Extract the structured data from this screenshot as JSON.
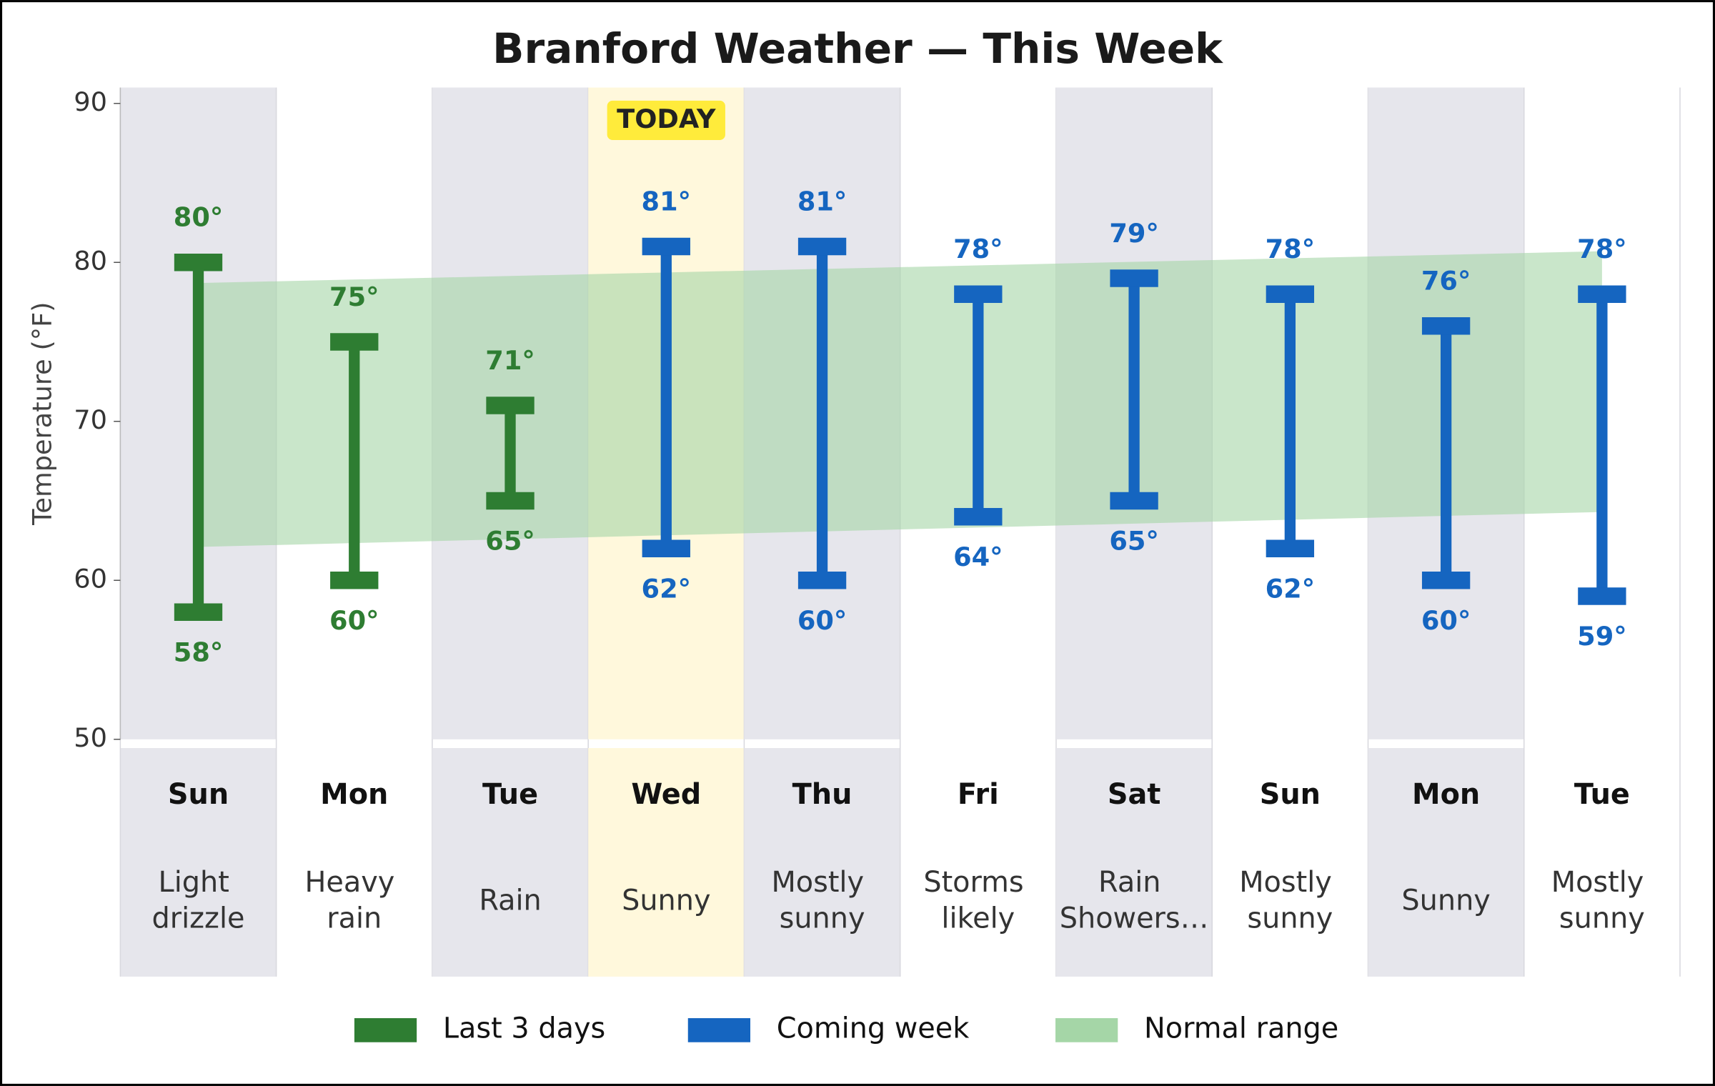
{
  "chart_data": {
    "type": "range",
    "title": "Branford Weather — This Week",
    "ylabel": "Temperature (°F)",
    "ylim": [
      50,
      91
    ],
    "yticks": [
      50,
      60,
      70,
      80,
      90
    ],
    "categories": [
      "Sun",
      "Mon",
      "Tue",
      "Wed",
      "Thu",
      "Fri",
      "Sat",
      "Sun",
      "Mon",
      "Tue"
    ],
    "conditions": [
      "Light drizzle",
      "Heavy rain",
      "Rain",
      "Sunny",
      "Mostly sunny",
      "Storms likely",
      "Rain Showers…",
      "Mostly sunny",
      "Sunny",
      "Mostly sunny"
    ],
    "today": {
      "label": "TODAY",
      "index": 3,
      "color": "#fff8dc",
      "badge_color": "#ffeb3b"
    },
    "shade_color": "#e6e6ec",
    "series": [
      {
        "name": "Last 3 days",
        "color": "#2e7d32",
        "high": [
          80,
          75,
          71,
          null,
          null,
          null,
          null,
          null,
          null,
          null
        ],
        "low": [
          58,
          60,
          65,
          null,
          null,
          null,
          null,
          null,
          null,
          null
        ],
        "high_labels": [
          "80°",
          "75°",
          "71°",
          null,
          null,
          null,
          null,
          null,
          null,
          null
        ],
        "low_labels": [
          "58°",
          "60°",
          "65°",
          null,
          null,
          null,
          null,
          null,
          null,
          null
        ]
      },
      {
        "name": "Coming week",
        "color": "#1565c0",
        "high": [
          null,
          null,
          null,
          81,
          81,
          78,
          79,
          78,
          76,
          78
        ],
        "low": [
          null,
          null,
          null,
          62,
          60,
          64,
          65,
          62,
          60,
          59
        ],
        "high_labels": [
          null,
          null,
          null,
          "81°",
          "81°",
          "78°",
          "79°",
          "78°",
          "76°",
          "78°"
        ],
        "low_labels": [
          null,
          null,
          null,
          "62°",
          "60°",
          "64°",
          "65°",
          "62°",
          "60°",
          "59°"
        ]
      }
    ],
    "normal_range": {
      "name": "Normal range",
      "color": "#a5d6a7",
      "low": [
        62.1,
        64.3
      ],
      "high": [
        78.7,
        80.7
      ]
    }
  }
}
